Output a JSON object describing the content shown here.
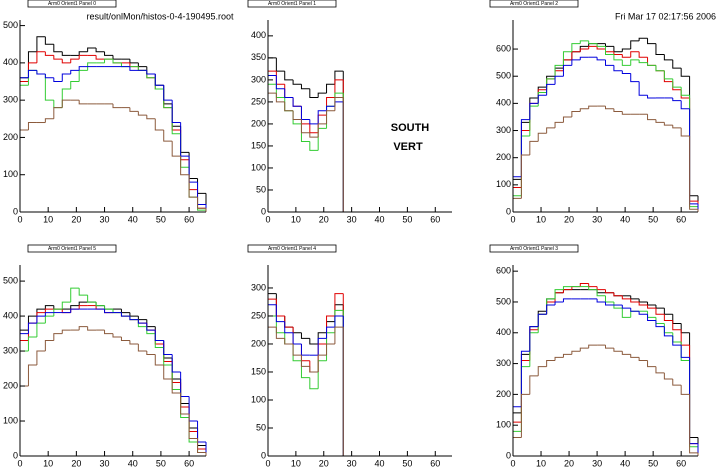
{
  "file": "result/onlMon/histos-0-4-190495.root",
  "date": "Fri Mar 17 02:17:56 2006",
  "chart_data": [
    {
      "type": "histogram",
      "title": "Arm0 Orient1 Panel 0",
      "bins": [
        0,
        3,
        6,
        9,
        12,
        15,
        18,
        21,
        24,
        27,
        30,
        33,
        36,
        39,
        42,
        45,
        48,
        51,
        54,
        57,
        60,
        63,
        66
      ],
      "xlim": [
        0,
        66
      ],
      "xticks": [
        0,
        10,
        20,
        30,
        40,
        50,
        60
      ],
      "ylim": [
        0,
        515
      ],
      "yticks": [
        0,
        100,
        200,
        300,
        400,
        500
      ],
      "series": [
        {
          "color": "#000000",
          "values": [
            360,
            430,
            470,
            450,
            430,
            420,
            420,
            430,
            440,
            430,
            420,
            410,
            410,
            400,
            390,
            370,
            340,
            290,
            230,
            160,
            90,
            50
          ]
        },
        {
          "color": "#e00000",
          "values": [
            350,
            400,
            430,
            420,
            410,
            400,
            410,
            420,
            420,
            410,
            410,
            400,
            400,
            390,
            380,
            360,
            330,
            280,
            220,
            140,
            60,
            10
          ]
        },
        {
          "color": "#33cc33",
          "values": [
            340,
            380,
            370,
            300,
            280,
            330,
            350,
            380,
            400,
            400,
            410,
            400,
            390,
            390,
            380,
            360,
            330,
            280,
            210,
            120,
            40,
            5
          ]
        },
        {
          "color": "#0000dd",
          "values": [
            360,
            380,
            370,
            360,
            350,
            370,
            380,
            390,
            390,
            390,
            390,
            390,
            390,
            380,
            380,
            370,
            340,
            300,
            240,
            150,
            80,
            20
          ]
        },
        {
          "color": "#8b5a3c",
          "values": [
            220,
            240,
            240,
            250,
            280,
            300,
            300,
            290,
            290,
            290,
            290,
            280,
            280,
            270,
            260,
            250,
            220,
            190,
            150,
            100,
            40,
            10
          ]
        }
      ]
    },
    {
      "type": "histogram",
      "title": "Arm0 Orient1 Panel 1",
      "annotations": [
        "SOUTH",
        "VERT"
      ],
      "bins": [
        0,
        3,
        6,
        9,
        12,
        15,
        18,
        21,
        24,
        27,
        30,
        33,
        36,
        39,
        42,
        45,
        48,
        51,
        54,
        57,
        60,
        63,
        66
      ],
      "xlim": [
        0,
        66
      ],
      "xticks": [
        0,
        10,
        20,
        30,
        40,
        50,
        60
      ],
      "ylim": [
        0,
        436
      ],
      "yticks": [
        0,
        50,
        100,
        150,
        200,
        250,
        300,
        350,
        400
      ],
      "series": [
        {
          "color": "#000000",
          "values": [
            350,
            320,
            300,
            290,
            280,
            260,
            270,
            290,
            320,
            0,
            0,
            0,
            0,
            0,
            0,
            0,
            0,
            0,
            0,
            0,
            0,
            0
          ]
        },
        {
          "color": "#e00000",
          "values": [
            320,
            290,
            260,
            240,
            200,
            180,
            220,
            260,
            300,
            0,
            0,
            0,
            0,
            0,
            0,
            0,
            0,
            0,
            0,
            0,
            0,
            0
          ]
        },
        {
          "color": "#33cc33",
          "values": [
            290,
            260,
            230,
            200,
            160,
            140,
            190,
            240,
            270,
            0,
            0,
            0,
            0,
            0,
            0,
            0,
            0,
            0,
            0,
            0,
            0,
            0
          ]
        },
        {
          "color": "#0000dd",
          "values": [
            310,
            280,
            260,
            240,
            210,
            200,
            230,
            240,
            250,
            0,
            0,
            0,
            0,
            0,
            0,
            0,
            0,
            0,
            0,
            0,
            0,
            0
          ]
        },
        {
          "color": "#8b5a3c",
          "values": [
            270,
            250,
            230,
            210,
            180,
            170,
            200,
            230,
            260,
            0,
            0,
            0,
            0,
            0,
            0,
            0,
            0,
            0,
            0,
            0,
            0,
            0
          ]
        }
      ]
    },
    {
      "type": "histogram",
      "title": "Arm0 Orient1 Panel 2",
      "bins": [
        0,
        3,
        6,
        9,
        12,
        15,
        18,
        21,
        24,
        27,
        30,
        33,
        36,
        39,
        42,
        45,
        48,
        51,
        54,
        57,
        60,
        63,
        66
      ],
      "xlim": [
        0,
        66
      ],
      "xticks": [
        0,
        10,
        20,
        30,
        40,
        50,
        60
      ],
      "ylim": [
        0,
        707
      ],
      "yticks": [
        0,
        100,
        200,
        300,
        400,
        500,
        600
      ],
      "series": [
        {
          "color": "#000000",
          "values": [
            120,
            330,
            420,
            460,
            500,
            530,
            560,
            590,
            610,
            620,
            620,
            610,
            590,
            600,
            630,
            640,
            620,
            580,
            560,
            530,
            500,
            60
          ]
        },
        {
          "color": "#e00000",
          "values": [
            90,
            300,
            400,
            450,
            490,
            520,
            560,
            590,
            600,
            610,
            600,
            590,
            580,
            570,
            590,
            570,
            540,
            520,
            480,
            450,
            420,
            40
          ]
        },
        {
          "color": "#33cc33",
          "values": [
            60,
            280,
            390,
            440,
            490,
            540,
            590,
            620,
            630,
            620,
            610,
            580,
            560,
            540,
            560,
            550,
            540,
            520,
            490,
            460,
            430,
            20
          ]
        },
        {
          "color": "#0000dd",
          "values": [
            130,
            340,
            400,
            430,
            470,
            500,
            540,
            560,
            570,
            570,
            560,
            540,
            520,
            510,
            480,
            430,
            420,
            420,
            420,
            410,
            380,
            30
          ]
        },
        {
          "color": "#8b5a3c",
          "values": [
            50,
            210,
            260,
            290,
            310,
            330,
            350,
            370,
            380,
            390,
            390,
            380,
            370,
            360,
            360,
            360,
            340,
            330,
            320,
            310,
            280,
            10
          ]
        }
      ]
    },
    {
      "type": "histogram",
      "title": "Arm0 Orient1 Panel 5",
      "bins": [
        0,
        3,
        6,
        9,
        12,
        15,
        18,
        21,
        24,
        27,
        30,
        33,
        36,
        39,
        42,
        45,
        48,
        51,
        54,
        57,
        60,
        63,
        66
      ],
      "xlim": [
        0,
        66
      ],
      "xticks": [
        0,
        10,
        20,
        30,
        40,
        50,
        60
      ],
      "ylim": [
        0,
        546
      ],
      "yticks": [
        0,
        100,
        200,
        300,
        400,
        500
      ],
      "series": [
        {
          "color": "#000000",
          "values": [
            360,
            400,
            420,
            430,
            420,
            420,
            430,
            440,
            440,
            430,
            420,
            420,
            410,
            400,
            390,
            370,
            330,
            280,
            220,
            150,
            80,
            30
          ]
        },
        {
          "color": "#e00000",
          "values": [
            330,
            380,
            410,
            420,
            420,
            410,
            420,
            430,
            430,
            420,
            410,
            410,
            400,
            390,
            380,
            360,
            320,
            270,
            210,
            140,
            70,
            20
          ]
        },
        {
          "color": "#33cc33",
          "values": [
            300,
            340,
            380,
            400,
            420,
            440,
            480,
            460,
            440,
            430,
            420,
            410,
            400,
            390,
            370,
            350,
            310,
            260,
            190,
            110,
            40,
            10
          ]
        },
        {
          "color": "#0000dd",
          "values": [
            350,
            380,
            400,
            410,
            410,
            410,
            420,
            420,
            420,
            420,
            410,
            410,
            400,
            390,
            380,
            360,
            330,
            290,
            240,
            170,
            100,
            40
          ]
        },
        {
          "color": "#8b5a3c",
          "values": [
            200,
            260,
            300,
            330,
            350,
            360,
            360,
            370,
            360,
            360,
            350,
            340,
            330,
            320,
            300,
            290,
            260,
            220,
            180,
            120,
            50,
            10
          ]
        }
      ]
    },
    {
      "type": "histogram",
      "title": "Arm0 Orient1 Panel 4",
      "bins": [
        0,
        3,
        6,
        9,
        12,
        15,
        18,
        21,
        24,
        27,
        30,
        33,
        36,
        39,
        42,
        45,
        48,
        51,
        54,
        57,
        60,
        63,
        66
      ],
      "xlim": [
        0,
        66
      ],
      "xticks": [
        0,
        10,
        20,
        30,
        40,
        50,
        60
      ],
      "ylim": [
        0,
        341
      ],
      "yticks": [
        0,
        50,
        100,
        150,
        200,
        250,
        300
      ],
      "series": [
        {
          "color": "#000000",
          "values": [
            290,
            250,
            230,
            220,
            210,
            200,
            220,
            240,
            270,
            0,
            0,
            0,
            0,
            0,
            0,
            0,
            0,
            0,
            0,
            0,
            0,
            0
          ]
        },
        {
          "color": "#e00000",
          "values": [
            280,
            250,
            230,
            200,
            170,
            150,
            200,
            250,
            290,
            0,
            0,
            0,
            0,
            0,
            0,
            0,
            0,
            0,
            0,
            0,
            0,
            0
          ]
        },
        {
          "color": "#33cc33",
          "values": [
            250,
            220,
            200,
            170,
            140,
            120,
            170,
            220,
            260,
            0,
            0,
            0,
            0,
            0,
            0,
            0,
            0,
            0,
            0,
            0,
            0,
            0
          ]
        },
        {
          "color": "#0000dd",
          "values": [
            270,
            240,
            220,
            200,
            180,
            180,
            210,
            230,
            250,
            0,
            0,
            0,
            0,
            0,
            0,
            0,
            0,
            0,
            0,
            0,
            0,
            0
          ]
        },
        {
          "color": "#8b5a3c",
          "values": [
            230,
            210,
            200,
            180,
            160,
            150,
            180,
            200,
            230,
            0,
            0,
            0,
            0,
            0,
            0,
            0,
            0,
            0,
            0,
            0,
            0,
            0
          ]
        }
      ]
    },
    {
      "type": "histogram",
      "title": "Arm0 Orient1 Panel 3",
      "bins": [
        0,
        3,
        6,
        9,
        12,
        15,
        18,
        21,
        24,
        27,
        30,
        33,
        36,
        39,
        42,
        45,
        48,
        51,
        54,
        57,
        60,
        63,
        66
      ],
      "xlim": [
        0,
        66
      ],
      "xticks": [
        0,
        10,
        20,
        30,
        40,
        50,
        60
      ],
      "ylim": [
        0,
        620
      ],
      "yticks": [
        0,
        100,
        200,
        300,
        400,
        500,
        600
      ],
      "series": [
        {
          "color": "#000000",
          "values": [
            140,
            330,
            420,
            470,
            510,
            530,
            540,
            540,
            540,
            540,
            530,
            530,
            520,
            520,
            510,
            500,
            490,
            480,
            460,
            430,
            400,
            60
          ]
        },
        {
          "color": "#e00000",
          "values": [
            110,
            310,
            410,
            460,
            500,
            530,
            540,
            550,
            560,
            550,
            540,
            530,
            520,
            510,
            500,
            490,
            480,
            460,
            440,
            410,
            360,
            40
          ]
        },
        {
          "color": "#33cc33",
          "values": [
            80,
            290,
            400,
            460,
            510,
            540,
            550,
            550,
            550,
            540,
            520,
            500,
            480,
            450,
            470,
            470,
            450,
            430,
            400,
            370,
            310,
            30
          ]
        },
        {
          "color": "#0000dd",
          "values": [
            160,
            340,
            420,
            460,
            490,
            500,
            510,
            510,
            510,
            510,
            500,
            490,
            490,
            480,
            470,
            460,
            440,
            420,
            390,
            360,
            320,
            40
          ]
        },
        {
          "color": "#8b5a3c",
          "values": [
            60,
            200,
            260,
            290,
            310,
            320,
            330,
            340,
            350,
            360,
            360,
            350,
            340,
            330,
            320,
            310,
            290,
            270,
            250,
            230,
            200,
            10
          ]
        }
      ]
    }
  ]
}
